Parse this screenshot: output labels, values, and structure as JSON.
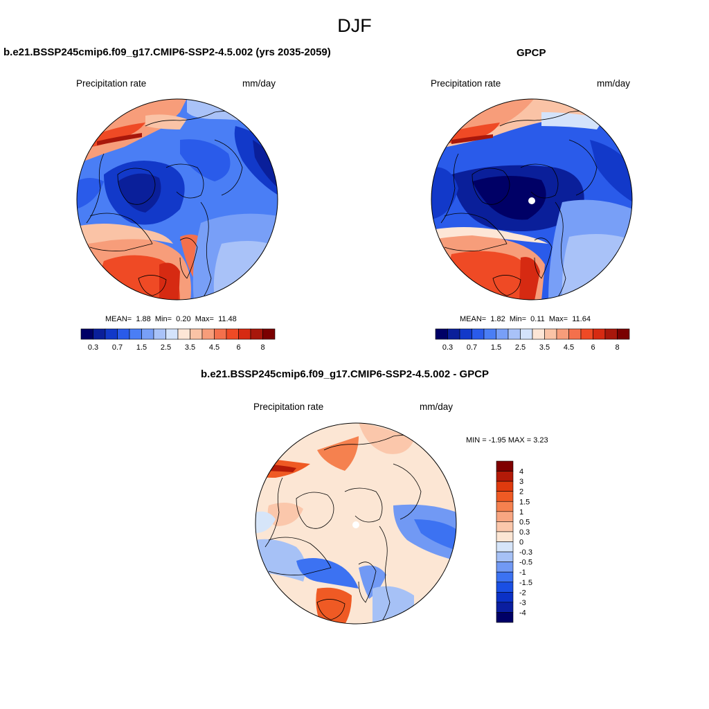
{
  "title": "DJF",
  "panels": [
    {
      "id": "model",
      "title": "b.e21.BSSP245cmip6.f09_g17.CMIP6-SSP2-4.5.002 (yrs 2035-2059)",
      "variable": "Precipitation rate",
      "units": "mm/day",
      "stats": {
        "mean_label": "MEAN=",
        "mean": "1.88",
        "min_label": "Min=",
        "min": "0.20",
        "max_label": "Max=",
        "max": "11.48"
      },
      "colorbar_ref": "absolute"
    },
    {
      "id": "obs",
      "title": "GPCP",
      "variable": "Precipitation rate",
      "units": "mm/day",
      "stats": {
        "mean_label": "MEAN=",
        "mean": "1.82",
        "min_label": "Min=",
        "min": "0.11",
        "max_label": "Max=",
        "max": "11.64"
      },
      "colorbar_ref": "absolute"
    },
    {
      "id": "diff",
      "title": "b.e21.BSSP245cmip6.f09_g17.CMIP6-SSP2-4.5.002 - GPCP",
      "variable": "Precipitation rate",
      "units": "mm/day",
      "stats_text": "MIN = -1.95 MAX = 3.23",
      "colorbar_ref": "difference"
    }
  ],
  "colorbars": {
    "absolute": {
      "orientation": "horizontal",
      "colors": [
        "#000066",
        "#0a1f9a",
        "#1239c9",
        "#2a5bea",
        "#4a7ef5",
        "#789ff7",
        "#a9c2f8",
        "#d4e3fb",
        "#fde6d6",
        "#fac3a6",
        "#f79d7a",
        "#f4704c",
        "#ef4a25",
        "#d62a12",
        "#a8170b",
        "#7a0000"
      ],
      "tick_labels": [
        "0.3",
        "0.7",
        "1.5",
        "2.5",
        "3.5",
        "4.5",
        "6",
        "8"
      ]
    },
    "difference": {
      "orientation": "vertical",
      "colors": [
        "#000066",
        "#0a1ea0",
        "#0b31c6",
        "#1a4fe4",
        "#3c72f2",
        "#7199f4",
        "#a6c1f6",
        "#d6e5f9",
        "#fce6d4",
        "#fbc7ab",
        "#f8a681",
        "#f5814f",
        "#ef5a24",
        "#df3a0e",
        "#b31a08",
        "#7f0000"
      ],
      "tick_labels": [
        "4",
        "3",
        "2",
        "1.5",
        "1",
        "0.5",
        "0.3",
        "0",
        "-0.3",
        "-0.5",
        "-1",
        "-1.5",
        "-2",
        "-3",
        "-4"
      ]
    }
  }
}
